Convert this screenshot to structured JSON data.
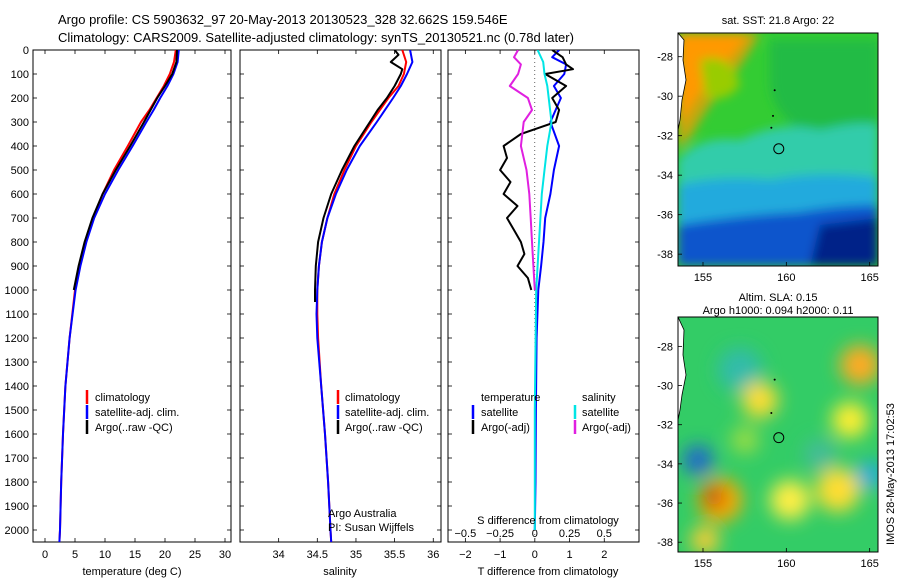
{
  "header": {
    "line1": "Argo profile: CS 5903632_97 20-May-2013 20130523_328 32.662S 159.546E",
    "line2": "Climatology: CARS2009. Satellite-adjusted climatology: synTS_20130521.nc (0.78d later)"
  },
  "colors": {
    "climatology": "#ff0000",
    "satellite": "#0000ff",
    "argo": "#000000",
    "cyan": "#00e5e5",
    "magenta": "#e020e0"
  },
  "chart_data": [
    {
      "type": "line",
      "name": "temperature-profile",
      "xlabel": "temperature (deg C)",
      "ylabel": "",
      "xlim": [
        -2,
        31
      ],
      "ylim": [
        2050,
        0
      ],
      "xticks": [
        0,
        5,
        10,
        15,
        20,
        25,
        30
      ],
      "yticks": [
        0,
        100,
        200,
        300,
        400,
        500,
        600,
        700,
        800,
        900,
        1000,
        1100,
        1200,
        1300,
        1400,
        1500,
        1600,
        1700,
        1800,
        1900,
        2000
      ],
      "legend": [
        "climatology",
        "satellite-adj. clim.",
        "Argo(..raw -QC)"
      ],
      "series": [
        {
          "name": "climatology",
          "color": "#ff0000",
          "depth": [
            0,
            50,
            100,
            150,
            200,
            250,
            300,
            400,
            500,
            600,
            700,
            800,
            900,
            1000,
            1200,
            1400,
            1600,
            1800,
            2000,
            2050
          ],
          "values": [
            21.8,
            21.5,
            20.8,
            19.8,
            18.6,
            17.4,
            16.0,
            13.8,
            11.5,
            9.6,
            8.0,
            6.8,
            5.8,
            5.0,
            4.1,
            3.4,
            3.0,
            2.7,
            2.5,
            2.4
          ]
        },
        {
          "name": "satellite",
          "color": "#0000ff",
          "depth": [
            0,
            50,
            100,
            150,
            200,
            250,
            300,
            400,
            500,
            600,
            700,
            800,
            900,
            1000,
            1200,
            1400,
            1600,
            1800,
            2000,
            2050
          ],
          "values": [
            22.3,
            22.1,
            21.4,
            20.4,
            19.2,
            18.1,
            16.9,
            14.6,
            12.2,
            10.0,
            8.2,
            6.9,
            5.9,
            5.1,
            4.1,
            3.4,
            3.0,
            2.7,
            2.5,
            2.4
          ]
        },
        {
          "name": "argo",
          "color": "#000000",
          "depth": [
            0,
            50,
            100,
            150,
            200,
            250,
            300,
            400,
            500,
            600,
            700,
            800,
            900,
            1000
          ],
          "values": [
            22.0,
            21.9,
            21.2,
            20.0,
            18.7,
            17.6,
            16.5,
            14.2,
            11.8,
            9.6,
            7.9,
            6.6,
            5.6,
            4.8
          ]
        }
      ]
    },
    {
      "type": "line",
      "name": "salinity-profile",
      "xlabel": "salinity",
      "xlim": [
        33.5,
        36.1
      ],
      "ylim": [
        2050,
        0
      ],
      "xticks": [
        34,
        34.5,
        35,
        35.5,
        36
      ],
      "legend": [
        "climatology",
        "satellite-adj. clim.",
        "Argo(..raw -QC)"
      ],
      "annotation": [
        "Argo Australia",
        "PI: Susan Wijffels"
      ],
      "series": [
        {
          "name": "climatology",
          "color": "#ff0000",
          "depth": [
            0,
            50,
            100,
            150,
            200,
            300,
            400,
            500,
            600,
            700,
            800,
            900,
            1000,
            1100,
            1200,
            1400,
            1600,
            1800,
            2000,
            2050
          ],
          "values": [
            35.6,
            35.65,
            35.62,
            35.55,
            35.42,
            35.2,
            35.0,
            34.85,
            34.72,
            34.63,
            34.56,
            34.52,
            34.5,
            34.5,
            34.51,
            34.55,
            34.6,
            34.64,
            34.67,
            34.68
          ]
        },
        {
          "name": "satellite",
          "color": "#0000ff",
          "depth": [
            0,
            50,
            100,
            150,
            200,
            300,
            400,
            500,
            600,
            700,
            800,
            900,
            1000,
            1100,
            1200,
            1400,
            1600,
            1800,
            2000,
            2050
          ],
          "values": [
            35.7,
            35.73,
            35.66,
            35.58,
            35.48,
            35.27,
            35.05,
            34.88,
            34.74,
            34.63,
            34.56,
            34.52,
            34.5,
            34.49,
            34.5,
            34.55,
            34.6,
            34.64,
            34.67,
            34.68
          ]
        },
        {
          "name": "argo",
          "color": "#000000",
          "depth": [
            0,
            20,
            50,
            80,
            100,
            150,
            200,
            250,
            300,
            400,
            500,
            600,
            700,
            800,
            900,
            1000,
            1050
          ],
          "values": [
            35.5,
            35.55,
            35.45,
            35.6,
            35.58,
            35.5,
            35.4,
            35.28,
            35.18,
            34.98,
            34.82,
            34.68,
            34.58,
            34.51,
            34.48,
            34.47,
            34.47
          ]
        }
      ]
    },
    {
      "type": "line",
      "name": "difference-profile",
      "xlabel": "T difference from climatology",
      "xlabel_top": "S difference from climatology",
      "xlim": [
        -2.5,
        3
      ],
      "ylim": [
        2050,
        0
      ],
      "xticks": [
        -2,
        -1,
        0,
        1,
        2
      ],
      "xticklabels": [
        "−2",
        "−1",
        "0",
        "1",
        "2"
      ],
      "sticks": [
        -0.5,
        -0.25,
        0,
        0.25,
        0.5
      ],
      "sticklabels": [
        "−0.5",
        "−0.25",
        "0",
        "0.25",
        "0.5"
      ],
      "legend_title_left": "temperature",
      "legend_title_right": "salinity",
      "legend": [
        "satellite",
        "Argo(-adj)",
        "satellite",
        "Argo(-adj)"
      ],
      "series": [
        {
          "name": "T satellite",
          "color": "#0000ff",
          "depth": [
            0,
            30,
            60,
            100,
            150,
            200,
            300,
            400,
            500,
            600,
            700,
            800,
            900,
            1000,
            1200,
            1500,
            1800,
            2000
          ],
          "values": [
            0.7,
            0.5,
            0.9,
            0.85,
            0.55,
            0.75,
            0.45,
            0.7,
            0.55,
            0.45,
            0.3,
            0.25,
            0.18,
            0.1,
            0.05,
            0.03,
            0.02,
            0.0
          ]
        },
        {
          "name": "T argo",
          "color": "#000000",
          "depth": [
            0,
            30,
            60,
            80,
            100,
            150,
            200,
            250,
            300,
            350,
            400,
            450,
            500,
            550,
            600,
            650,
            700,
            750,
            800,
            850,
            900,
            950,
            1000
          ],
          "values": [
            0.5,
            0.8,
            0.9,
            1.1,
            0.3,
            0.9,
            0.5,
            0.7,
            0.6,
            -0.4,
            -0.9,
            -0.8,
            -1.0,
            -0.7,
            -0.9,
            -0.5,
            -0.8,
            -0.6,
            -0.4,
            -0.3,
            -0.5,
            -0.2,
            -0.1
          ]
        },
        {
          "name": "S satellite",
          "color": "#00e5e5",
          "depth": [
            0,
            50,
            100,
            150,
            200,
            250,
            300,
            400,
            500,
            600,
            700,
            800,
            900,
            1000,
            1500,
            2000
          ],
          "values": [
            0.02,
            0.06,
            0.07,
            0.09,
            0.1,
            0.11,
            0.12,
            0.09,
            0.07,
            0.05,
            0.04,
            0.03,
            0.02,
            0.01,
            0.0,
            0.0
          ]
        },
        {
          "name": "S argo",
          "color": "#e020e0",
          "depth": [
            0,
            30,
            60,
            100,
            150,
            200,
            250,
            300,
            400,
            500,
            600,
            700,
            800,
            900,
            1000
          ],
          "values": [
            -0.12,
            -0.15,
            -0.1,
            -0.12,
            -0.18,
            -0.05,
            -0.02,
            -0.08,
            -0.1,
            -0.06,
            -0.04,
            -0.03,
            -0.02,
            -0.01,
            0.0
          ]
        }
      ]
    }
  ],
  "map_sst": {
    "title": "sat. SST: 21.8 Argo: 22",
    "xticks": [
      "155",
      "160",
      "165"
    ],
    "yticks": [
      "-28",
      "-30",
      "-32",
      "-34",
      "-36",
      "-38"
    ]
  },
  "map_sla": {
    "title_line1": "Altim. SLA: 0.15",
    "title_line2": "Argo h1000: 0.094 h2000: 0.11",
    "xticks": [
      "155",
      "160",
      "165"
    ],
    "yticks": [
      "-28",
      "-30",
      "-32",
      "-34",
      "-36",
      "-38"
    ]
  },
  "credit": "IMOS 28-May-2013 17:02:53"
}
